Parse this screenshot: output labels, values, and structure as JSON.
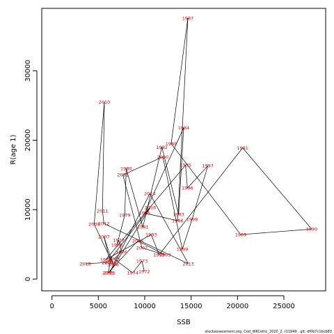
{
  "chart_data": {
    "type": "scatter",
    "connected": true,
    "xlabel": "SSB",
    "ylabel": "R(age 1)",
    "xlim": [
      -1100,
      29500
    ],
    "ylim": [
      -1700,
      39000
    ],
    "xticks": [
      0,
      5000,
      10000,
      15000,
      20000,
      25000
    ],
    "yticks": [
      0,
      10000,
      20000,
      30000
    ],
    "label_color": "#e00000",
    "line_color": "#000000",
    "footnote": "stockassessment.org, Cod_WKCeltic_2020_2, r11949 , git: df0b7c1bcb83",
    "points": [
      {
        "year": "1972",
        "x": 9950,
        "y": 1100
      },
      {
        "year": "1973",
        "x": 9700,
        "y": 2600
      },
      {
        "year": "1974",
        "x": 8700,
        "y": 900
      },
      {
        "year": "1975",
        "x": 6700,
        "y": 2900
      },
      {
        "year": "1976",
        "x": 7500,
        "y": 3900
      },
      {
        "year": "1977",
        "x": 7200,
        "y": 5600
      },
      {
        "year": "1978",
        "x": 7000,
        "y": 4900
      },
      {
        "year": "1979",
        "x": 7850,
        "y": 9200
      },
      {
        "year": "1980",
        "x": 8000,
        "y": 15900
      },
      {
        "year": "1981",
        "x": 9800,
        "y": 7500
      },
      {
        "year": "1982",
        "x": 11850,
        "y": 19000
      },
      {
        "year": "1983",
        "x": 13650,
        "y": 9300
      },
      {
        "year": "1984",
        "x": 14200,
        "y": 21800
      },
      {
        "year": "1985",
        "x": 10000,
        "y": 9500
      },
      {
        "year": "1986",
        "x": 13550,
        "y": 8400
      },
      {
        "year": "1987",
        "x": 14650,
        "y": 37600
      },
      {
        "year": "1988",
        "x": 12850,
        "y": 19500
      },
      {
        "year": "1989",
        "x": 20350,
        "y": 6400
      },
      {
        "year": "1990",
        "x": 28000,
        "y": 7200
      },
      {
        "year": "1991",
        "x": 20550,
        "y": 18900
      },
      {
        "year": "1992",
        "x": 11550,
        "y": 3500
      },
      {
        "year": "1993",
        "x": 10700,
        "y": 6400
      },
      {
        "year": "1994",
        "x": 5800,
        "y": 2800
      },
      {
        "year": "1995",
        "x": 14400,
        "y": 16400
      },
      {
        "year": "1996",
        "x": 14600,
        "y": 13100
      },
      {
        "year": "1997",
        "x": 16800,
        "y": 16300
      },
      {
        "year": "1998",
        "x": 15100,
        "y": 8600
      },
      {
        "year": "1999",
        "x": 14050,
        "y": 4300
      },
      {
        "year": "2000",
        "x": 11950,
        "y": 17600
      },
      {
        "year": "2001",
        "x": 7650,
        "y": 15000
      },
      {
        "year": "2002",
        "x": 9700,
        "y": 4500
      },
      {
        "year": "2003",
        "x": 12200,
        "y": 3500
      },
      {
        "year": "2004",
        "x": 9250,
        "y": 5500
      },
      {
        "year": "2005",
        "x": 6050,
        "y": 900
      },
      {
        "year": "2006",
        "x": 6300,
        "y": 2400
      },
      {
        "year": "2007",
        "x": 5600,
        "y": 6100
      },
      {
        "year": "2008",
        "x": 6600,
        "y": 2100
      },
      {
        "year": "2009",
        "x": 4550,
        "y": 7900
      },
      {
        "year": "2010",
        "x": 5650,
        "y": 25500
      },
      {
        "year": "2011",
        "x": 5450,
        "y": 9800
      },
      {
        "year": "2012",
        "x": 5600,
        "y": 8000
      },
      {
        "year": "2013",
        "x": 14700,
        "y": 2200
      },
      {
        "year": "2014",
        "x": 10550,
        "y": 12300
      },
      {
        "year": "2015",
        "x": 6200,
        "y": 900
      },
      {
        "year": "2016",
        "x": 10600,
        "y": 10300
      },
      {
        "year": "2017",
        "x": 6000,
        "y": 2400
      },
      {
        "year": "2018",
        "x": 3600,
        "y": 2200
      }
    ]
  }
}
